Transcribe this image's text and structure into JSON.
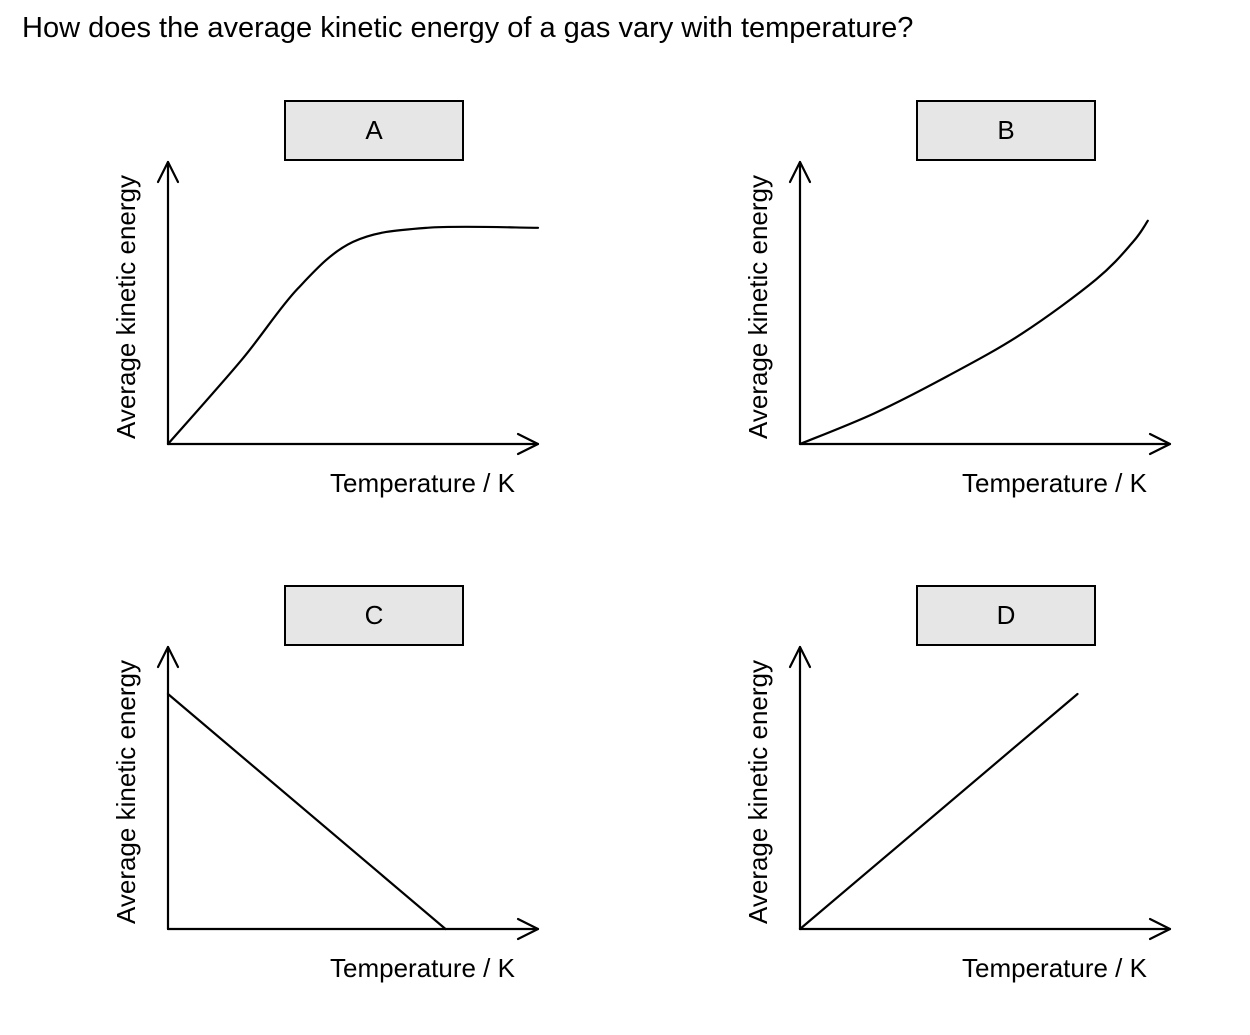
{
  "question": "How does the average kinetic energy of a gas vary with temperature?",
  "chart_data": [
    {
      "type": "line",
      "option": "A",
      "xlabel": "Temperature / K",
      "ylabel": "Average kinetic energy",
      "shape": "linear increase then levelling off",
      "x": [
        0,
        0.2,
        0.35,
        0.5,
        0.7,
        1.0
      ],
      "y": [
        0,
        0.36,
        0.66,
        0.86,
        0.92,
        0.92
      ],
      "xlim": [
        0,
        1
      ],
      "ylim": [
        0,
        1.2
      ]
    },
    {
      "type": "line",
      "option": "B",
      "xlabel": "Temperature / K",
      "ylabel": "Average kinetic energy",
      "shape": "increasing, curving upward",
      "x": [
        0,
        0.2,
        0.4,
        0.6,
        0.8,
        0.9,
        0.94
      ],
      "y": [
        0,
        0.13,
        0.29,
        0.47,
        0.7,
        0.86,
        0.95
      ],
      "xlim": [
        0,
        1
      ],
      "ylim": [
        0,
        1.2
      ]
    },
    {
      "type": "line",
      "option": "C",
      "xlabel": "Temperature / K",
      "ylabel": "Average kinetic energy",
      "shape": "linear decrease",
      "x": [
        0,
        0.75
      ],
      "y": [
        1.0,
        0
      ],
      "xlim": [
        0,
        1
      ],
      "ylim": [
        0,
        1.2
      ]
    },
    {
      "type": "line",
      "option": "D",
      "xlabel": "Temperature / K",
      "ylabel": "Average kinetic energy",
      "shape": "linear increase through origin",
      "x": [
        0,
        0.75
      ],
      "y": [
        0,
        1.0
      ],
      "xlim": [
        0,
        1
      ],
      "ylim": [
        0,
        1.2
      ]
    }
  ]
}
